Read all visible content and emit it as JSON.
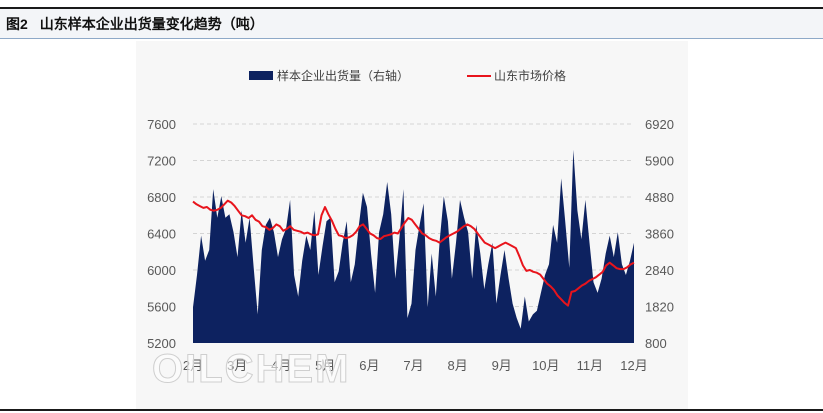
{
  "figure": {
    "label": "图2",
    "title": "山东样本企业出货量变化趋势（吨）"
  },
  "watermark": "OILCHEM",
  "chart_data": {
    "type": "area+line",
    "x_ticks": [
      "2月",
      "3月",
      "4月",
      "5月",
      "6月",
      "7月",
      "8月",
      "9月",
      "10月",
      "11月",
      "12月"
    ],
    "left_axis": {
      "ticks": [
        "5200",
        "5600",
        "6000",
        "6400",
        "6800",
        "7200",
        "7600"
      ],
      "min": 5200,
      "max": 7600
    },
    "right_axis": {
      "ticks": [
        "800",
        "1820",
        "2840",
        "3860",
        "4880",
        "5900",
        "6920"
      ],
      "min": 800,
      "max": 6920
    },
    "grid": "horizontal-dashed",
    "legend_position": "top",
    "series": [
      {
        "name": "样本企业出货量（右轴）",
        "kind": "area",
        "axis": "right",
        "color": "#0d2260",
        "values": [
          1800,
          2700,
          3800,
          3100,
          3400,
          5100,
          4300,
          4900,
          4300,
          4400,
          3900,
          3200,
          4500,
          3600,
          4300,
          2900,
          1600,
          3400,
          4100,
          4300,
          3900,
          3200,
          3700,
          4000,
          4800,
          2700,
          2100,
          3100,
          3800,
          3400,
          4500,
          2700,
          3500,
          4200,
          4300,
          2500,
          2800,
          3600,
          4200,
          2500,
          3000,
          4100,
          5000,
          4600,
          3300,
          2200,
          3900,
          4400,
          5300,
          4400,
          2600,
          3700,
          5100,
          1500,
          1900,
          3400,
          4100,
          4700,
          1800,
          3300,
          2100,
          3700,
          4900,
          4200,
          2600,
          3600,
          4800,
          4300,
          3900,
          2600,
          4100,
          3300,
          2300,
          3000,
          3600,
          1900,
          2700,
          3400,
          2600,
          1900,
          1500,
          1200,
          2100,
          1400,
          1600,
          1700,
          2200,
          2700,
          3000,
          4100,
          3600,
          5400,
          4200,
          2900,
          6200,
          4500,
          3700,
          4800,
          3600,
          2500,
          2200,
          2600,
          3300,
          3800,
          3200,
          3900,
          3000,
          2700,
          3100,
          3600
        ]
      },
      {
        "name": "山东市场价格",
        "kind": "line",
        "axis": "left",
        "color": "#e8141c",
        "values": [
          6750,
          6720,
          6700,
          6680,
          6690,
          6660,
          6650,
          6660,
          6680,
          6720,
          6760,
          6740,
          6700,
          6650,
          6600,
          6590,
          6570,
          6600,
          6550,
          6530,
          6480,
          6470,
          6440,
          6460,
          6500,
          6480,
          6430,
          6450,
          6480,
          6440,
          6430,
          6420,
          6400,
          6410,
          6390,
          6380,
          6390,
          6600,
          6690,
          6610,
          6540,
          6450,
          6380,
          6370,
          6350,
          6360,
          6380,
          6420,
          6480,
          6500,
          6450,
          6400,
          6380,
          6350,
          6340,
          6370,
          6380,
          6390,
          6410,
          6400,
          6460,
          6520,
          6570,
          6550,
          6500,
          6450,
          6400,
          6380,
          6350,
          6330,
          6320,
          6300,
          6330,
          6360,
          6380,
          6400,
          6420,
          6450,
          6480,
          6500,
          6480,
          6450,
          6400,
          6350,
          6300,
          6280,
          6260,
          6240,
          6260,
          6280,
          6300,
          6280,
          6260,
          6240,
          6150,
          6050,
          5990,
          6000,
          5980,
          5970,
          5950,
          5900,
          5850,
          5820,
          5780,
          5720,
          5680,
          5640,
          5610,
          5760,
          5770,
          5800,
          5830,
          5850,
          5880,
          5900,
          5920,
          5950,
          5980,
          6050,
          6080,
          6050,
          6020,
          6010,
          6010,
          6030,
          6060,
          6080
        ]
      }
    ]
  }
}
